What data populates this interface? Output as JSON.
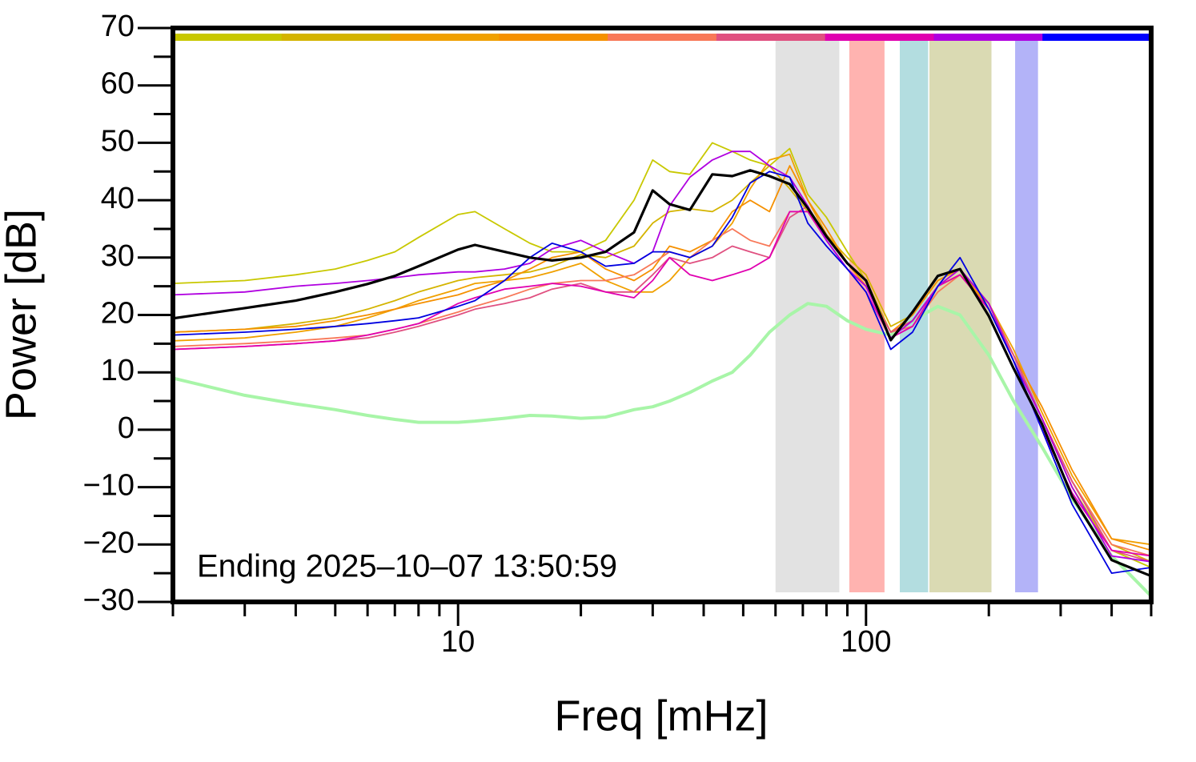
{
  "chart_data": {
    "type": "line",
    "xlabel": "Freq [mHz]",
    "ylabel": "Power [dB]",
    "annotation": "Ending 2025–10–07 13:50:59",
    "log_x": true,
    "xlim": [
      2,
      500
    ],
    "ylim": [
      -30,
      70
    ],
    "xticks": [
      10,
      100
    ],
    "xminorticks": [
      2,
      3,
      4,
      5,
      6,
      7,
      8,
      9,
      20,
      30,
      40,
      50,
      60,
      70,
      80,
      90,
      200,
      300,
      400,
      500
    ],
    "yticks": [
      {
        "value": 70,
        "label": "70"
      },
      {
        "value": 60,
        "label": "60"
      },
      {
        "value": 50,
        "label": "50"
      },
      {
        "value": 40,
        "label": "40"
      },
      {
        "value": 30,
        "label": "30"
      },
      {
        "value": 20,
        "label": "20"
      },
      {
        "value": 10,
        "label": "10"
      },
      {
        "value": 0,
        "label": "0"
      },
      {
        "value": -10,
        "label": "−10"
      },
      {
        "value": -20,
        "label": "−20"
      },
      {
        "value": -30,
        "label": "−30"
      }
    ],
    "yminorticks": [
      65,
      55,
      45,
      35,
      25,
      15,
      5,
      -5,
      -15,
      -25
    ],
    "colorbar": [
      "#c8c800",
      "#d4b400",
      "#f0a000",
      "#f59000",
      "#f87858",
      "#e05080",
      "#e000b0",
      "#b000e0",
      "#0000ff"
    ],
    "bands": [
      {
        "range": [
          60,
          86
        ],
        "color": "#e2e2e2"
      },
      {
        "range": [
          91,
          111
        ],
        "color": "#ffb3b0"
      },
      {
        "range": [
          121,
          142
        ],
        "color": "#b3dde0"
      },
      {
        "range": [
          143,
          203
        ],
        "color": "#dadab3"
      },
      {
        "range": [
          232,
          264
        ],
        "color": "#b3b3f8"
      }
    ],
    "x": [
      2,
      3,
      4,
      5,
      6,
      7,
      8,
      10,
      11,
      13,
      15,
      17,
      20,
      23,
      27,
      30,
      33,
      37,
      42,
      47,
      52,
      58,
      65,
      72,
      80,
      90,
      100,
      115,
      130,
      150,
      170,
      200,
      230,
      270,
      320,
      400,
      500
    ],
    "series": [
      {
        "color": "#a8f5a8",
        "width": 4,
        "values": [
          9,
          6,
          4.5,
          3.5,
          2.5,
          1.8,
          1.3,
          1.3,
          1.5,
          2,
          2.5,
          2.4,
          2,
          2.2,
          3.5,
          4,
          5,
          6.5,
          8.5,
          10,
          13,
          17,
          20,
          22,
          21.5,
          19,
          17.5,
          16.5,
          19,
          21.5,
          20,
          13,
          5,
          -3,
          -12,
          -22,
          -29
        ]
      },
      {
        "color": "#c8c800",
        "width": 1.8,
        "values": [
          25.5,
          26,
          27,
          28,
          29.5,
          31,
          33.5,
          37.5,
          38,
          35,
          32.5,
          31,
          31,
          33,
          40,
          47,
          45,
          44.5,
          50,
          48.5,
          47,
          46,
          49,
          41,
          37,
          31,
          26,
          17,
          19,
          25,
          27,
          21,
          12,
          2,
          -10,
          -21,
          -24
        ]
      },
      {
        "color": "#d4b400",
        "width": 1.8,
        "values": [
          17,
          17.5,
          18.5,
          19.5,
          21,
          22.5,
          24,
          26,
          26.5,
          27,
          27.5,
          28.5,
          30.5,
          30,
          32,
          36,
          38,
          38.5,
          38,
          40,
          43,
          46,
          42,
          38,
          34,
          30,
          27,
          18,
          20,
          26,
          28,
          22,
          13,
          2,
          -9,
          -20,
          -23
        ]
      },
      {
        "color": "#f0a000",
        "width": 1.8,
        "values": [
          15.5,
          16,
          17,
          18,
          19.5,
          21,
          22.5,
          24.5,
          25.5,
          26,
          26.5,
          27.5,
          29,
          26,
          24,
          24,
          26,
          30,
          32,
          36,
          42,
          47,
          48,
          40,
          34,
          29,
          25,
          17,
          19,
          25,
          27,
          22,
          14,
          3,
          -8,
          -19,
          -20
        ]
      },
      {
        "color": "#f59000",
        "width": 1.8,
        "values": [
          17,
          17.5,
          18,
          19,
          20,
          21,
          22,
          23.5,
          24.5,
          26,
          28,
          30,
          31,
          28,
          26,
          28,
          32,
          31,
          33,
          38,
          40,
          38,
          46,
          40,
          35,
          29,
          25,
          17,
          20,
          26,
          28,
          21,
          13,
          4,
          -7,
          -19,
          -21
        ]
      },
      {
        "color": "#f87858",
        "width": 1.8,
        "values": [
          14.5,
          15,
          15.5,
          16,
          16.5,
          17.5,
          18.5,
          20.5,
          21.5,
          23,
          24.5,
          25.5,
          26,
          26,
          27,
          29,
          31,
          30,
          33,
          35,
          33,
          32,
          38,
          38,
          33,
          28,
          25,
          17,
          18,
          24,
          27,
          21,
          13,
          2,
          -9,
          -20,
          -22
        ]
      },
      {
        "color": "#e05080",
        "width": 1.8,
        "values": [
          14,
          14.5,
          15,
          15.5,
          16,
          17,
          18,
          20,
          21,
          22,
          23,
          24.5,
          25.5,
          24,
          24,
          27,
          30,
          29,
          30,
          32,
          31,
          30,
          37,
          39,
          33,
          28,
          25,
          17,
          19,
          25,
          28,
          22,
          13,
          2,
          -9,
          -21,
          -23
        ]
      },
      {
        "color": "#e000b0",
        "width": 1.8,
        "values": [
          14,
          14.5,
          15,
          15.5,
          16.5,
          17.5,
          18.5,
          22,
          23,
          24.5,
          25,
          25.5,
          25,
          24,
          23,
          26,
          30,
          27,
          26,
          27,
          28,
          30,
          38,
          38,
          33,
          28,
          24,
          16,
          18,
          25,
          27,
          21,
          12,
          0,
          -11,
          -21,
          -22
        ]
      },
      {
        "color": "#b000e0",
        "width": 1.8,
        "values": [
          23.5,
          24,
          25,
          25.5,
          26,
          26.5,
          27,
          27.5,
          27.5,
          28,
          29,
          31.5,
          33,
          31,
          29,
          31,
          39,
          44,
          47,
          48.5,
          48.5,
          46,
          44,
          39,
          33,
          28,
          25,
          16,
          19,
          25,
          28,
          22,
          12,
          2,
          -10,
          -22,
          -23
        ]
      },
      {
        "color": "#0000e0",
        "width": 1.8,
        "values": [
          16.5,
          17,
          17.5,
          18,
          18.5,
          19,
          19.5,
          21.5,
          22.5,
          26,
          30,
          32.5,
          31,
          28.5,
          29,
          31,
          31,
          30,
          32,
          37,
          43,
          45,
          44,
          36,
          32,
          28,
          24,
          14,
          17,
          25,
          30,
          21,
          12,
          0,
          -13,
          -25,
          -24
        ]
      },
      {
        "color": "#000000",
        "width": 3.2,
        "values": [
          19.4,
          21.2,
          22.5,
          24,
          25.4,
          26.8,
          28.5,
          31.4,
          32.2,
          31,
          30,
          29.5,
          30,
          31,
          34.4,
          41.7,
          39.3,
          38.3,
          44.5,
          44.2,
          45.2,
          44.2,
          42.8,
          38.6,
          33.7,
          29,
          26,
          15.6,
          20.5,
          26.8,
          28,
          19.8,
          10.7,
          1,
          -11.6,
          -22.7,
          -25.5
        ]
      }
    ]
  }
}
